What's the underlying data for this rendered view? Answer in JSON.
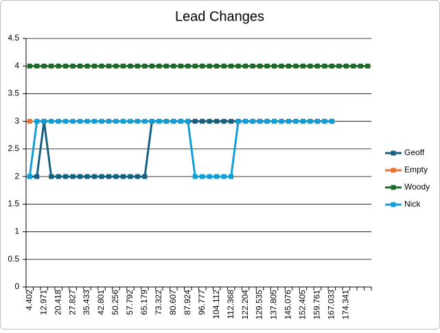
{
  "chart_data": {
    "type": "line",
    "title": "Lead Changes",
    "categories": [
      "4.402",
      null,
      "12.971",
      null,
      "20.418",
      null,
      "27.827",
      null,
      "35.433",
      null,
      "42.801",
      null,
      "50.256",
      null,
      "57.792",
      null,
      "65.179",
      null,
      "73.322",
      null,
      "80.607",
      null,
      "87.924",
      null,
      "96.777",
      null,
      "104.112",
      null,
      "112.368",
      null,
      "122.204",
      null,
      "129.535",
      null,
      "137.805",
      null,
      "145.076",
      null,
      "152.405",
      null,
      "159.761",
      null,
      "167.033",
      null,
      "174.341",
      null,
      null,
      null
    ],
    "series": [
      {
        "name": "Geoff",
        "color": "#156082",
        "values": [
          2,
          2,
          3,
          2,
          2,
          2,
          2,
          2,
          2,
          2,
          2,
          2,
          2,
          2,
          2,
          2,
          2,
          3,
          3,
          3,
          3,
          3,
          3,
          3,
          3,
          3,
          3,
          3,
          3,
          3,
          3,
          3,
          3,
          3,
          3,
          3,
          3,
          3,
          3,
          3,
          3,
          3,
          3,
          null,
          null,
          null,
          null,
          null
        ]
      },
      {
        "name": "Empty",
        "color": "#e97132",
        "values": [
          3,
          null,
          null,
          null,
          null,
          null,
          null,
          null,
          null,
          null,
          null,
          null,
          null,
          null,
          null,
          null,
          null,
          null,
          null,
          null,
          null,
          null,
          null,
          null,
          null,
          null,
          null,
          null,
          null,
          null,
          null,
          null,
          null,
          null,
          null,
          null,
          null,
          null,
          null,
          null,
          null,
          null,
          null,
          null,
          null,
          null,
          null,
          null
        ]
      },
      {
        "name": "Woody",
        "color": "#196b24",
        "values": [
          4,
          4,
          4,
          4,
          4,
          4,
          4,
          4,
          4,
          4,
          4,
          4,
          4,
          4,
          4,
          4,
          4,
          4,
          4,
          4,
          4,
          4,
          4,
          4,
          4,
          4,
          4,
          4,
          4,
          4,
          4,
          4,
          4,
          4,
          4,
          4,
          4,
          4,
          4,
          4,
          4,
          4,
          4,
          4,
          4,
          4,
          4,
          4
        ]
      },
      {
        "name": "Nick",
        "color": "#0f9ed5",
        "values": [
          2,
          3,
          3,
          3,
          3,
          3,
          3,
          3,
          3,
          3,
          3,
          3,
          3,
          3,
          3,
          3,
          3,
          3,
          3,
          3,
          3,
          3,
          3,
          2,
          2,
          2,
          2,
          2,
          2,
          3,
          3,
          3,
          3,
          3,
          3,
          3,
          3,
          3,
          3,
          3,
          3,
          3,
          3,
          null,
          null,
          null,
          null,
          null
        ]
      }
    ],
    "ylim": [
      0,
      4.5
    ],
    "yticks": [
      0,
      0.5,
      1,
      1.5,
      2,
      2.5,
      3,
      3.5,
      4,
      4.5
    ],
    "grid": true,
    "legend": "right"
  }
}
